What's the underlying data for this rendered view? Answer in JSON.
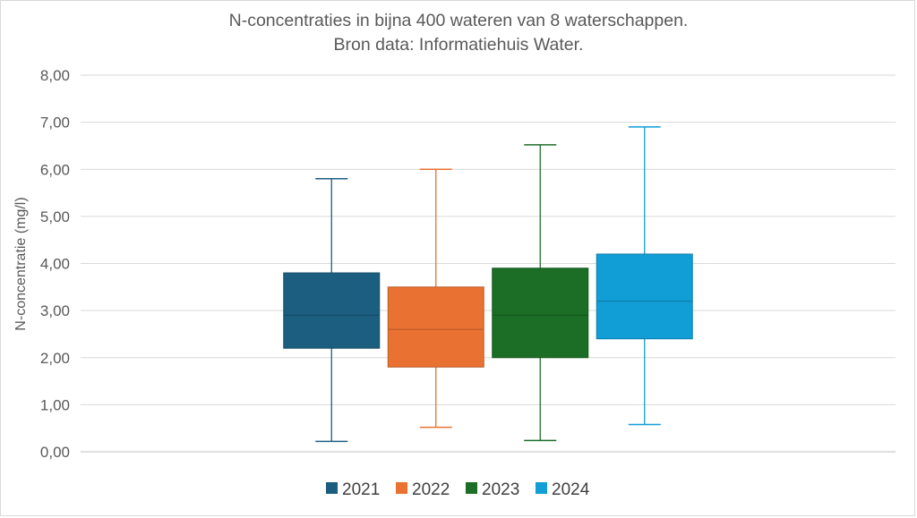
{
  "chart_data": {
    "type": "boxplot",
    "title": "N-concentraties in bijna 400 wateren van 8 waterschappen.",
    "subtitle": "Bron data: Informatiehuis Water.",
    "ylabel": "N-concentratie  (mg/l)",
    "xlabel": "",
    "ylim": [
      0,
      8
    ],
    "yticks": [
      "0,00",
      "1,00",
      "2,00",
      "3,00",
      "4,00",
      "5,00",
      "6,00",
      "7,00",
      "8,00"
    ],
    "grid": true,
    "legend_position": "bottom",
    "series": [
      {
        "name": "2021",
        "color": "#1b5e80",
        "min": 0.22,
        "q1": 2.2,
        "median": 2.9,
        "q3": 3.8,
        "max": 5.8
      },
      {
        "name": "2022",
        "color": "#e97232",
        "min": 0.52,
        "q1": 1.8,
        "median": 2.6,
        "q3": 3.5,
        "max": 6.0
      },
      {
        "name": "2023",
        "color": "#1c6e26",
        "min": 0.24,
        "q1": 2.0,
        "median": 2.9,
        "q3": 3.9,
        "max": 6.52
      },
      {
        "name": "2024",
        "color": "#119ed6",
        "min": 0.58,
        "q1": 2.4,
        "median": 3.2,
        "q3": 4.2,
        "max": 6.9
      }
    ]
  }
}
